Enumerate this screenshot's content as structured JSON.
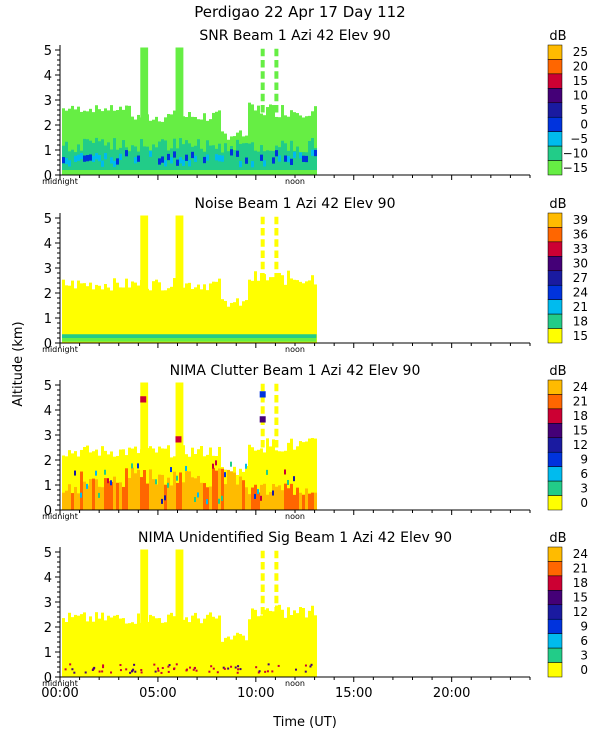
{
  "header": {
    "title": "Perdigao  22 Apr 17 Day 112"
  },
  "axes": {
    "ylabel": "Altitude (km)",
    "xlabel": "Time (UT)",
    "y_ticks": [
      "0",
      "1",
      "2",
      "3",
      "4",
      "5"
    ],
    "x_ticks": [
      "00:00",
      "05:00",
      "10:00",
      "15:00",
      "20:00"
    ],
    "x_tick_hours": [
      0,
      5,
      10,
      15,
      20
    ],
    "marker_midnight": "midnight",
    "marker_noon": "noon"
  },
  "colors": {
    "yellow": "#ffff00",
    "green": "#66ee44",
    "teal": "#22cc88",
    "cyan": "#00bbee",
    "blue": "#0033dd",
    "navy": "#1a1aa0",
    "purple": "#440077",
    "red": "#cc0033",
    "orange": "#ff6600",
    "gold": "#ffbb00"
  },
  "chart_data": [
    {
      "type": "heatmap",
      "title": "SNR Beam 1 Azi  42 Elev 90",
      "colorbar_label": "dB",
      "colorbar_ticks": [
        "25",
        "20",
        "15",
        "10",
        "5",
        "0",
        "−5",
        "−10",
        "−15"
      ],
      "xlim": [
        0,
        24
      ],
      "ylim": [
        0,
        5.2
      ],
      "data_extent_hours": [
        0,
        13.1
      ],
      "xlabel": "Time (UT)",
      "ylabel": "Altitude (km)"
    },
    {
      "type": "heatmap",
      "title": "Noise Beam 1 Azi  42 Elev 90",
      "colorbar_label": "dB",
      "colorbar_ticks": [
        "39",
        "36",
        "33",
        "30",
        "27",
        "24",
        "21",
        "18",
        "15"
      ],
      "xlim": [
        0,
        24
      ],
      "ylim": [
        0,
        5.2
      ],
      "data_extent_hours": [
        0,
        13.1
      ],
      "xlabel": "Time (UT)",
      "ylabel": "Altitude (km)"
    },
    {
      "type": "heatmap",
      "title": "NIMA Clutter Beam 1 Azi  42 Elev 90",
      "colorbar_label": "dB",
      "colorbar_ticks": [
        "24",
        "21",
        "18",
        "15",
        "12",
        "9",
        "6",
        "3",
        "0"
      ],
      "xlim": [
        0,
        24
      ],
      "ylim": [
        0,
        5.2
      ],
      "data_extent_hours": [
        0,
        13.1
      ],
      "xlabel": "Time (UT)",
      "ylabel": "Altitude (km)"
    },
    {
      "type": "heatmap",
      "title": "NIMA Unidentified Sig Beam 1 Azi  42 Elev 90",
      "colorbar_label": "dB",
      "colorbar_ticks": [
        "24",
        "21",
        "18",
        "15",
        "12",
        "9",
        "6",
        "3",
        "0"
      ],
      "xlim": [
        0,
        24
      ],
      "ylim": [
        0,
        5.2
      ],
      "data_extent_hours": [
        0,
        13.1
      ],
      "xlabel": "Time (UT)",
      "ylabel": "Altitude (km)"
    }
  ]
}
